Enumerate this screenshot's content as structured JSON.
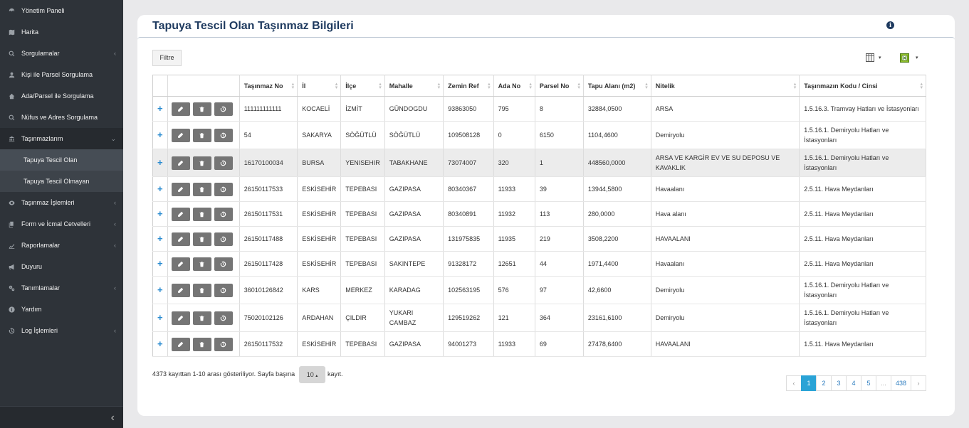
{
  "sidebar": {
    "items": [
      {
        "label": "Yönetim Paneli",
        "icon": "dashboard-icon"
      },
      {
        "label": "Harita",
        "icon": "map-icon"
      },
      {
        "label": "Sorgulamalar",
        "icon": "search-icon",
        "chevron": "‹"
      },
      {
        "label": "Kişi ile Parsel Sorgulama",
        "icon": "user-icon"
      },
      {
        "label": "Ada/Parsel ile Sorgulama",
        "icon": "home-icon"
      },
      {
        "label": "Nüfus ve Adres Sorgulama",
        "icon": "search-icon"
      },
      {
        "label": "Taşınmazlarım",
        "icon": "bank-icon",
        "chevron": "⌄"
      },
      {
        "label": "Tapuya Tescil Olan"
      },
      {
        "label": "Tapuya Tescil Olmayan"
      },
      {
        "label": "Taşınmaz İşlemleri",
        "icon": "eye-icon",
        "chevron": "‹"
      },
      {
        "label": "Form ve İcmal Cetvelleri",
        "icon": "copy-icon",
        "chevron": "‹"
      },
      {
        "label": "Raporlamalar",
        "icon": "line-chart-icon",
        "chevron": "‹"
      },
      {
        "label": "Duyuru",
        "icon": "bullhorn-icon"
      },
      {
        "label": "Tanımlamalar",
        "icon": "cogs-icon",
        "chevron": "‹"
      },
      {
        "label": "Yardım",
        "icon": "info-circle-icon"
      },
      {
        "label": "Log İşlemleri",
        "icon": "history-icon",
        "chevron": "‹"
      }
    ],
    "collapse": "‹"
  },
  "page": {
    "title": "Tapuya Tescil Olan Taşınmaz Bilgileri",
    "filter_label": "Filtre",
    "info": "i"
  },
  "table": {
    "headers": [
      "Taşınmaz No",
      "İl",
      "İlçe",
      "Mahalle",
      "Zemin Ref",
      "Ada No",
      "Parsel No",
      "Tapu Alanı (m2)",
      "Nitelik",
      "Taşınmazın Kodu / Cinsi"
    ],
    "rows": [
      [
        "111111111111",
        "KOCAELİ",
        "İZMİT",
        "GÜNDOGDU",
        "93863050",
        "795",
        "8",
        "32884,0500",
        "ARSA",
        "1.5.16.3. Tramvay Hatları ve İstasyonları"
      ],
      [
        "54",
        "SAKARYA",
        "SÖĞÜTLÜ",
        "SÖĞÜTLÜ",
        "109508128",
        "0",
        "6150",
        "1104,4600",
        "Demiryolu",
        "1.5.16.1. Demiryolu Hatları ve İstasyonları"
      ],
      [
        "16170100034",
        "BURSA",
        "YENISEHIR",
        "TABAKHANE",
        "73074007",
        "320",
        "1",
        "448560,0000",
        "ARSA VE KARGİR EV VE SU DEPOSU VE KAVAKLIK",
        "1.5.16.1. Demiryolu Hatları ve İstasyonları"
      ],
      [
        "26150117533",
        "ESKİSEHİR",
        "TEPEBASI",
        "GAZIPASA",
        "80340367",
        "11933",
        "39",
        "13944,5800",
        "Havaalanı",
        "2.5.11. Hava Meydanları"
      ],
      [
        "26150117531",
        "ESKİSEHİR",
        "TEPEBASI",
        "GAZIPASA",
        "80340891",
        "11932",
        "113",
        "280,0000",
        "Hava alanı",
        "2.5.11. Hava Meydanları"
      ],
      [
        "26150117488",
        "ESKİSEHİR",
        "TEPEBASI",
        "GAZIPASA",
        "131975835",
        "11935",
        "219",
        "3508,2200",
        "HAVAALANI",
        "2.5.11. Hava Meydanları"
      ],
      [
        "26150117428",
        "ESKİSEHİR",
        "TEPEBASI",
        "SAKINTEPE",
        "91328172",
        "12651",
        "44",
        "1971,4400",
        "Havaalanı",
        "2.5.11. Hava Meydanları"
      ],
      [
        "36010126842",
        "KARS",
        "MERKEZ",
        "KARADAG",
        "102563195",
        "576",
        "97",
        "42,6600",
        "Demiryolu",
        "1.5.16.1. Demiryolu Hatları ve İstasyonları"
      ],
      [
        "75020102126",
        "ARDAHAN",
        "ÇILDIR",
        "YUKARI CAMBAZ",
        "129519262",
        "121",
        "364",
        "23161,6100",
        "Demiryolu",
        "1.5.16.1. Demiryolu Hatları ve İstasyonları"
      ],
      [
        "26150117532",
        "ESKİSEHİR",
        "TEPEBASI",
        "GAZIPASA",
        "94001273",
        "11933",
        "69",
        "27478,6400",
        "HAVAALANI",
        "1.5.11. Hava Meydanları"
      ]
    ]
  },
  "footer": {
    "summary": "4373 kayıttan 1-10 arası gösteriliyor. Sayfa başına",
    "page_size": "10",
    "suffix": "kayıt."
  },
  "pagination": {
    "prev": "‹",
    "pages": [
      "1",
      "2",
      "3",
      "4",
      "5",
      "...",
      "438"
    ],
    "next": "›",
    "active": "1"
  }
}
